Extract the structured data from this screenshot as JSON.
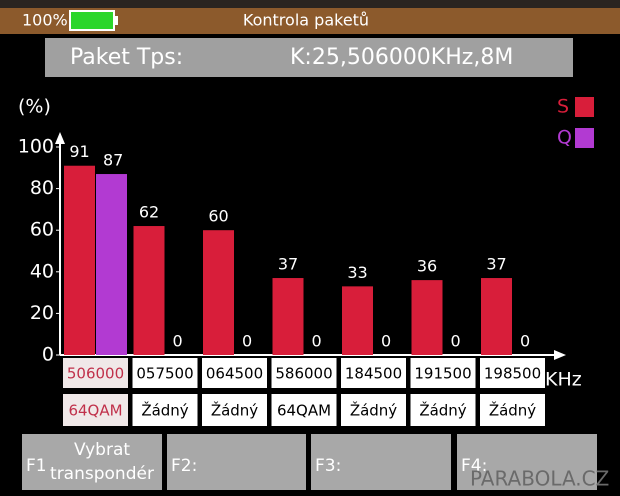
{
  "status": {
    "battery": "100%",
    "title": "Kontrola paketů"
  },
  "info": {
    "label": "Paket Tps:",
    "value": "K:25,506000KHz,8M"
  },
  "chart_data": {
    "type": "bar",
    "y_label": "(%)",
    "x_unit": "KHz",
    "categories": [
      "506000",
      "057500",
      "064500",
      "586000",
      "184500",
      "191500",
      "198500"
    ],
    "modulations": [
      "64QAM",
      "Žádný",
      "Žádný",
      "64QAM",
      "Žádný",
      "Žádný",
      "Žádný"
    ],
    "series": [
      {
        "name": "S",
        "color": "#d81e3a",
        "values": [
          91,
          62,
          60,
          37,
          33,
          36,
          37
        ]
      },
      {
        "name": "Q",
        "color": "#b23ad2",
        "values": [
          87,
          0,
          0,
          0,
          0,
          0,
          0
        ]
      }
    ],
    "ylim": [
      0,
      100
    ],
    "yticks": [
      0,
      20,
      40,
      60,
      80,
      100
    ]
  },
  "footer": {
    "keys": [
      {
        "key": "F1",
        "label": [
          "Vybrat",
          "transpondér"
        ]
      },
      {
        "key": "F2:"
      },
      {
        "key": "F3:"
      },
      {
        "key": "F4:"
      }
    ],
    "watermark": "PARABOLA.CZ"
  }
}
